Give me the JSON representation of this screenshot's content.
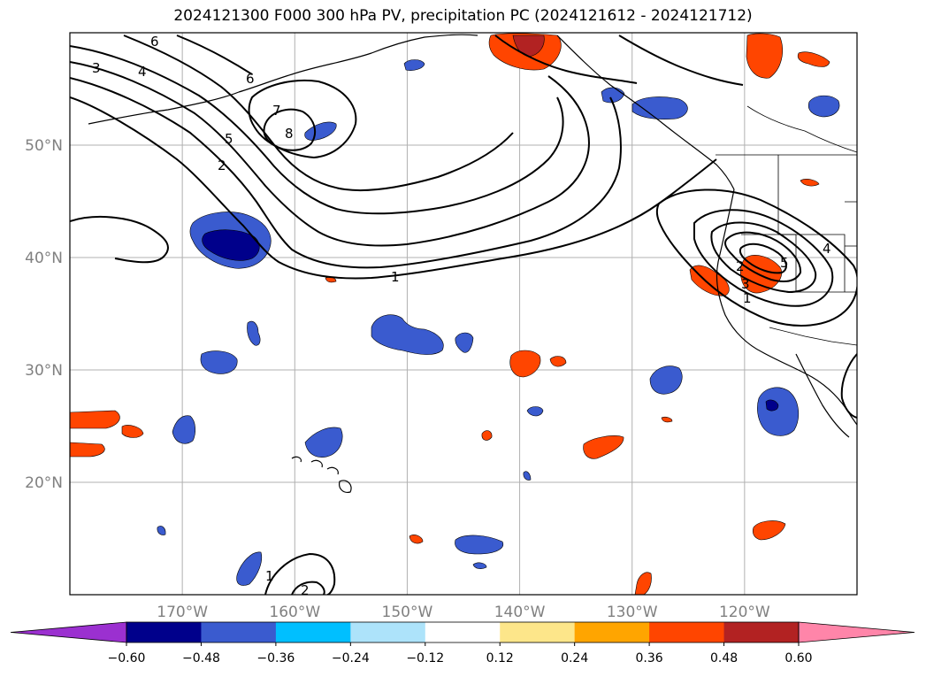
{
  "title": "2024121300 F000 300 hPa PV, precipitation PC (2024121612 - 2024121712)",
  "map": {
    "lon_range": [
      -180,
      -110
    ],
    "lat_range": [
      10,
      60
    ],
    "lat_ticks": [
      {
        "value": 20,
        "label": "20°N"
      },
      {
        "value": 30,
        "label": "30°N"
      },
      {
        "value": 40,
        "label": "40°N"
      },
      {
        "value": 50,
        "label": "50°N"
      }
    ],
    "lon_ticks": [
      {
        "value": -170,
        "label": "170°W"
      },
      {
        "value": -160,
        "label": "160°W"
      },
      {
        "value": -150,
        "label": "150°W"
      },
      {
        "value": -140,
        "label": "140°W"
      },
      {
        "value": -130,
        "label": "130°W"
      },
      {
        "value": -120,
        "label": "120°W"
      }
    ],
    "gridlines": true,
    "contour_labels": [
      "6",
      "3",
      "4",
      "6",
      "7",
      "8",
      "5",
      "2",
      "1",
      "1",
      "2",
      "1",
      "2",
      "3",
      "4",
      "5"
    ]
  },
  "colorbar": {
    "levels": [
      "−0.60",
      "−0.48",
      "−0.36",
      "−0.24",
      "−0.12",
      "0.12",
      "0.24",
      "0.36",
      "0.48",
      "0.60"
    ],
    "colors": [
      "#9b30d0",
      "#00008b",
      "#3a5bcf",
      "#00bfff",
      "#ade3fa",
      "#ffffff",
      "#fde68a",
      "#ffa500",
      "#ff4500",
      "#b22222",
      "#ff85a9"
    ],
    "extend": "both"
  }
}
